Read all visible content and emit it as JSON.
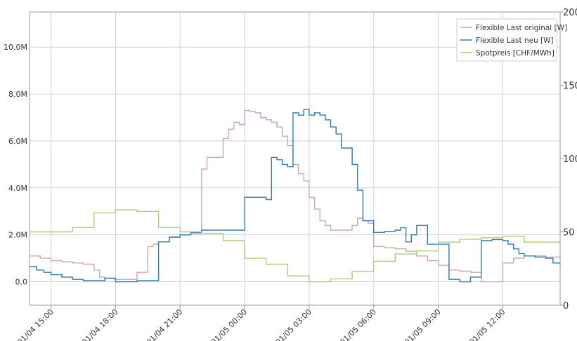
{
  "chart_data": {
    "type": "line",
    "step": true,
    "grid": true,
    "legend_position": "top-right",
    "x_ticks": [
      "01/04 15:00",
      "01/04 18:00",
      "01/04 21:00",
      "01/05 00:00",
      "01/05 03:00",
      "01/05 06:00",
      "01/05 09:00",
      "01/05 12:00"
    ],
    "x_range": [
      "01/04 14:00",
      "01/05 14:40"
    ],
    "y_left": {
      "ticks": [
        "0.0",
        "2.0M",
        "4.0M",
        "6.0M",
        "8.0M",
        "10.0M"
      ],
      "tick_values": [
        0,
        2,
        4,
        6,
        8,
        10
      ],
      "range": [
        -1,
        11.5
      ]
    },
    "y_right": {
      "ticks": [
        "0",
        "50",
        "100",
        "150",
        "200"
      ],
      "tick_values": [
        0,
        50,
        100,
        150,
        200
      ],
      "range": [
        0,
        200
      ]
    },
    "series": [
      {
        "name": "Flexible Last original [W]",
        "color": "#d4a6a0",
        "axis": "left",
        "x": [
          "01/04 14:00",
          "01/04 14:30",
          "01/04 15:00",
          "01/04 15:30",
          "01/04 16:00",
          "01/04 16:30",
          "01/04 17:00",
          "01/04 17:15",
          "01/04 17:30",
          "01/04 18:00",
          "01/04 19:00",
          "01/04 19:30",
          "01/04 19:45",
          "01/04 20:00",
          "01/04 20:30",
          "01/04 21:00",
          "01/04 21:30",
          "01/04 22:00",
          "01/04 22:15",
          "01/04 22:30",
          "01/04 23:00",
          "01/04 23:15",
          "01/04 23:30",
          "01/04 23:45",
          "01/05 00:00",
          "01/05 00:15",
          "01/05 00:30",
          "01/05 00:45",
          "01/05 01:00",
          "01/05 01:15",
          "01/05 01:30",
          "01/05 01:45",
          "01/05 02:00",
          "01/05 02:15",
          "01/05 02:30",
          "01/05 02:45",
          "01/05 03:00",
          "01/05 03:15",
          "01/05 03:30",
          "01/05 03:45",
          "01/05 04:00",
          "01/05 04:30",
          "01/05 05:00",
          "01/05 05:15",
          "01/05 05:30",
          "01/05 05:45",
          "01/05 06:00",
          "01/05 06:30",
          "01/05 07:00",
          "01/05 07:30",
          "01/05 08:00",
          "01/05 08:30",
          "01/05 09:00",
          "01/05 09:30",
          "01/05 10:00",
          "01/05 10:30",
          "01/05 11:00",
          "01/05 11:30",
          "01/05 12:00",
          "01/05 12:30",
          "01/05 13:00",
          "01/05 13:30",
          "01/05 14:00",
          "01/05 14:40"
        ],
        "values": [
          1.1,
          1.0,
          0.9,
          0.85,
          0.8,
          0.75,
          0.5,
          0.2,
          0.15,
          0.1,
          0.4,
          1.5,
          1.6,
          1.7,
          1.9,
          2.0,
          2.05,
          4.8,
          5.3,
          5.3,
          6.1,
          6.5,
          6.8,
          6.7,
          7.3,
          7.25,
          7.2,
          7.0,
          6.9,
          6.8,
          6.6,
          6.2,
          5.8,
          5.0,
          4.6,
          4.3,
          3.6,
          3.1,
          2.6,
          2.4,
          2.2,
          2.2,
          2.4,
          2.7,
          2.6,
          2.5,
          1.5,
          1.45,
          1.4,
          1.3,
          1.1,
          0.9,
          0.7,
          0.5,
          0.45,
          0.4,
          0.0,
          0.0,
          0.8,
          1.0,
          1.1,
          1.1,
          1.05,
          1.1
        ]
      },
      {
        "name": "Flexible Last neu [W]",
        "color": "#2e7bb6",
        "axis": "left",
        "x": [
          "01/04 14:00",
          "01/04 14:20",
          "01/04 14:40",
          "01/04 15:00",
          "01/04 15:30",
          "01/04 16:00",
          "01/04 16:30",
          "01/04 17:00",
          "01/04 17:30",
          "01/04 18:00",
          "01/04 19:00",
          "01/04 20:00",
          "01/04 20:30",
          "01/04 21:00",
          "01/04 21:30",
          "01/04 22:00",
          "01/04 23:00",
          "01/05 00:00",
          "01/05 01:00",
          "01/05 01:15",
          "01/05 01:30",
          "01/05 01:45",
          "01/05 02:00",
          "01/05 02:15",
          "01/05 02:30",
          "01/05 02:45",
          "01/05 03:00",
          "01/05 03:15",
          "01/05 03:30",
          "01/05 03:45",
          "01/05 04:00",
          "01/05 04:15",
          "01/05 04:30",
          "01/05 05:00",
          "01/05 05:15",
          "01/05 05:30",
          "01/05 06:00",
          "01/05 06:30",
          "01/05 07:00",
          "01/05 07:15",
          "01/05 07:30",
          "01/05 07:45",
          "01/05 08:00",
          "01/05 08:30",
          "01/05 09:30",
          "01/05 10:00",
          "01/05 10:30",
          "01/05 11:00",
          "01/05 11:30",
          "01/05 12:00",
          "01/05 12:15",
          "01/05 12:30",
          "01/05 12:45",
          "01/05 13:00",
          "01/05 13:30",
          "01/05 14:00",
          "01/05 14:20",
          "01/05 14:40"
        ],
        "values": [
          0.65,
          0.5,
          0.4,
          0.3,
          0.2,
          0.1,
          0.05,
          0.05,
          0.15,
          0.0,
          0.05,
          1.7,
          1.9,
          2.0,
          2.1,
          2.2,
          2.2,
          3.6,
          3.5,
          5.3,
          5.2,
          5.0,
          4.9,
          7.2,
          7.1,
          7.35,
          7.1,
          7.2,
          7.1,
          6.9,
          6.6,
          6.3,
          5.7,
          5.0,
          3.9,
          2.6,
          2.1,
          2.15,
          2.2,
          2.3,
          1.7,
          2.0,
          2.4,
          1.6,
          0.1,
          0.0,
          0.2,
          1.75,
          1.8,
          1.75,
          1.6,
          1.4,
          1.2,
          1.1,
          1.05,
          1.0,
          0.8,
          0.7
        ]
      },
      {
        "name": "Spotpreis [CHF/MWh]",
        "color": "#a9cf6f",
        "axis": "right",
        "x": [
          "01/04 14:00",
          "01/04 15:00",
          "01/04 16:00",
          "01/04 17:00",
          "01/04 18:00",
          "01/04 19:00",
          "01/04 20:00",
          "01/04 21:00",
          "01/04 22:00",
          "01/04 23:00",
          "01/05 00:00",
          "01/05 01:00",
          "01/05 02:00",
          "01/05 03:00",
          "01/05 04:00",
          "01/05 05:00",
          "01/05 06:00",
          "01/05 07:00",
          "01/05 08:00",
          "01/05 09:00",
          "01/05 10:00",
          "01/05 11:00",
          "01/05 12:00",
          "01/05 13:00",
          "01/05 14:00",
          "01/05 14:40"
        ],
        "values": [
          50,
          50,
          53,
          63,
          65,
          64,
          53,
          50,
          49,
          44,
          32,
          28,
          20,
          16,
          18,
          23,
          30,
          35,
          37,
          43,
          45,
          46,
          47,
          43,
          43,
          43
        ]
      }
    ]
  }
}
